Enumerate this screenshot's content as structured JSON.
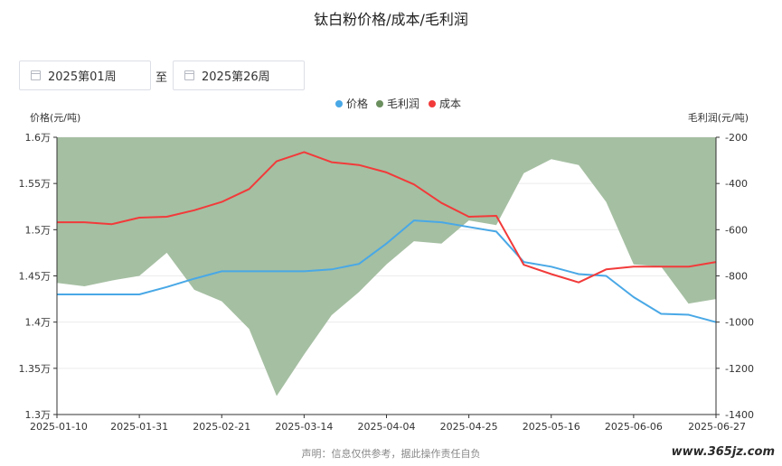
{
  "title": "钛白粉价格/成本/毛利润",
  "date_range": {
    "start_value": "2025第01周",
    "separator": "至",
    "end_value": "2025第26周"
  },
  "legend": [
    {
      "name": "价格",
      "color": "#49a8e6"
    },
    {
      "name": "毛利润",
      "color": "#6b8f5e"
    },
    {
      "name": "成本",
      "color": "#f23a3a"
    }
  ],
  "footer": "声明：信息仅供参考，据此操作责任自负",
  "watermark": "www.365jz.com",
  "colors": {
    "price": "#49a8e6",
    "cost": "#f23a3a",
    "profit_fill": "#a5bfa2",
    "profit_legend": "#6b8f5e",
    "axis": "#333333",
    "grid": "#ececec"
  },
  "chart_data": {
    "type": "line",
    "title": "钛白粉价格/成本/毛利润",
    "y_left_label": "价格(元/吨)",
    "y_right_label": "毛利润(元/吨)",
    "x_tick_labels": [
      "2025-01-10",
      "2025-01-31",
      "2025-02-21",
      "2025-03-14",
      "2025-04-04",
      "2025-04-25",
      "2025-05-16",
      "2025-06-06",
      "2025-06-27"
    ],
    "y_left_ticks": [
      "1.6万",
      "1.55万",
      "1.5万",
      "1.45万",
      "1.4万",
      "1.35万",
      "1.3万"
    ],
    "y_right_ticks": [
      "-200",
      "-400",
      "-600",
      "-800",
      "-1000",
      "-1200",
      "-1400"
    ],
    "ylim_left": [
      13000,
      16000
    ],
    "ylim_right": [
      -1400,
      -200
    ],
    "grid": true,
    "legend_position": "top-center",
    "x": [
      "2025-01-10",
      "2025-01-17",
      "2025-01-24",
      "2025-01-31",
      "2025-02-07",
      "2025-02-14",
      "2025-02-21",
      "2025-02-28",
      "2025-03-07",
      "2025-03-14",
      "2025-03-21",
      "2025-03-28",
      "2025-04-04",
      "2025-04-11",
      "2025-04-18",
      "2025-04-25",
      "2025-05-02",
      "2025-05-09",
      "2025-05-16",
      "2025-05-23",
      "2025-05-30",
      "2025-06-06",
      "2025-06-13",
      "2025-06-20",
      "2025-06-27"
    ],
    "series": [
      {
        "name": "价格",
        "axis": "left",
        "type": "line",
        "values": [
          14300,
          14300,
          14300,
          14300,
          14380,
          14470,
          14550,
          14550,
          14550,
          14550,
          14570,
          14630,
          14850,
          15100,
          15080,
          15030,
          14980,
          14650,
          14600,
          14520,
          14500,
          14270,
          14090,
          14080,
          14000
        ]
      },
      {
        "name": "毛利润",
        "axis": "right",
        "type": "area",
        "values": [
          -830,
          -845,
          -820,
          -800,
          -700,
          -860,
          -910,
          -1030,
          -1320,
          -1140,
          -970,
          -870,
          -750,
          -650,
          -660,
          -560,
          -580,
          -355,
          -295,
          -320,
          -480,
          -750,
          -760,
          -920,
          -900
        ]
      },
      {
        "name": "成本",
        "axis": "left",
        "type": "line",
        "values": [
          15080,
          15080,
          15060,
          15130,
          15140,
          15210,
          15300,
          15440,
          15740,
          15840,
          15730,
          15700,
          15620,
          15490,
          15290,
          15140,
          15150,
          14620,
          14520,
          14430,
          14570,
          14600,
          14600,
          14600,
          14650
        ]
      }
    ]
  }
}
